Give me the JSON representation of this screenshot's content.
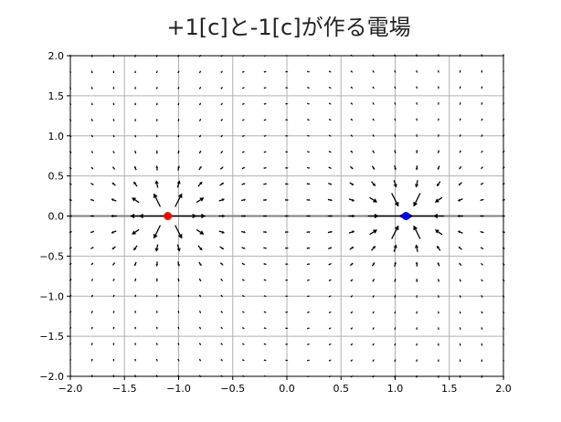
{
  "chart_data": {
    "type": "quiver",
    "title": "+1[c]と-1[c]が作る電場",
    "xlabel": "",
    "ylabel": "",
    "xlim": [
      -2.0,
      2.0
    ],
    "ylim": [
      -2.0,
      2.0
    ],
    "x_ticks": [
      "−2.0",
      "−1.5",
      "−1.0",
      "−0.5",
      "0.0",
      "0.5",
      "1.0",
      "1.5",
      "2.0"
    ],
    "y_ticks": [
      "2.0",
      "1.5",
      "1.0",
      "0.5",
      "0.0",
      "−0.5",
      "−1.0",
      "−1.5",
      "−2.0"
    ],
    "x_tick_values": [
      -2.0,
      -1.5,
      -1.0,
      -0.5,
      0.0,
      0.5,
      1.0,
      1.5,
      2.0
    ],
    "y_tick_values": [
      2.0,
      1.5,
      1.0,
      0.5,
      0.0,
      -0.5,
      -1.0,
      -1.5,
      -2.0
    ],
    "grid": true,
    "grid_range": {
      "min": -2.0,
      "max": 2.0,
      "count": 21
    },
    "charges": [
      {
        "x": -1.1,
        "y": 0.0,
        "q": 1,
        "color": "#ff0000"
      },
      {
        "x": 1.1,
        "y": 0.0,
        "q": -1,
        "color": "#0000ff"
      }
    ],
    "axis_line_color": "#808080",
    "arrow_color": "#000000"
  }
}
